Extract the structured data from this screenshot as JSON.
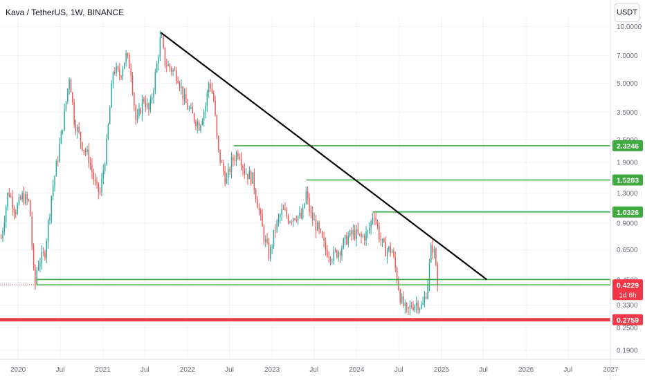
{
  "header": {
    "title": "Kava / TetherUS, 1W, BINANCE",
    "unit_button": "USDT"
  },
  "colors": {
    "up": "#26a69a",
    "down": "#ef5350",
    "level": "#3faa3f",
    "support_red": "#ef3b4c",
    "trend": "#000000",
    "price_badge": "#f23645"
  },
  "chart_data": {
    "type": "candlestick",
    "interval": "1W",
    "y_scale": "log",
    "ylim": [
      0.17,
      11.5
    ],
    "xlim": [
      "2019-10-15",
      "2026-12-31"
    ],
    "y_ticks": [
      "10.0000",
      "7.0000",
      "5.0000",
      "3.5000",
      "2.5000",
      "1.9000",
      "1.3000",
      "0.9000",
      "0.6500",
      "0.4500",
      "0.3300",
      "0.2500",
      "0.1900"
    ],
    "x_ticks": [
      {
        "label": "2020",
        "date": "2020-01-01"
      },
      {
        "label": "Jul",
        "date": "2020-07-01"
      },
      {
        "label": "2021",
        "date": "2021-01-01"
      },
      {
        "label": "Jul",
        "date": "2021-07-01"
      },
      {
        "label": "2022",
        "date": "2022-01-01"
      },
      {
        "label": "Jul",
        "date": "2022-07-01"
      },
      {
        "label": "2023",
        "date": "2023-01-01"
      },
      {
        "label": "Jul",
        "date": "2023-07-01"
      },
      {
        "label": "2024",
        "date": "2024-01-01"
      },
      {
        "label": "Jul",
        "date": "2024-07-01"
      },
      {
        "label": "2025",
        "date": "2025-01-01"
      },
      {
        "label": "Jul",
        "date": "2025-07-01"
      },
      {
        "label": "2026",
        "date": "2026-01-01"
      },
      {
        "label": "Jul",
        "date": "2026-07-01"
      },
      {
        "label": "2027",
        "date": "2027-01-01"
      }
    ],
    "price_path": [
      [
        "2019-10-20",
        0.75
      ],
      [
        "2019-11-20",
        1.35
      ],
      [
        "2019-12-20",
        1.05
      ],
      [
        "2020-01-20",
        1.25
      ],
      [
        "2020-02-20",
        1.15
      ],
      [
        "2020-03-12",
        0.4
      ],
      [
        "2020-03-25",
        0.55
      ],
      [
        "2020-04-25",
        0.62
      ],
      [
        "2020-05-25",
        1.3
      ],
      [
        "2020-06-20",
        2.0
      ],
      [
        "2020-07-20",
        3.5
      ],
      [
        "2020-08-10",
        5.6
      ],
      [
        "2020-08-30",
        3.2
      ],
      [
        "2020-10-01",
        2.4
      ],
      [
        "2020-11-01",
        2.0
      ],
      [
        "2020-12-01",
        1.4
      ],
      [
        "2020-12-20",
        1.3
      ],
      [
        "2021-01-15",
        2.2
      ],
      [
        "2021-02-15",
        6.0
      ],
      [
        "2021-03-15",
        5.5
      ],
      [
        "2021-04-10",
        7.0
      ],
      [
        "2021-05-01",
        6.0
      ],
      [
        "2021-05-25",
        3.0
      ],
      [
        "2021-06-25",
        4.2
      ],
      [
        "2021-07-20",
        3.5
      ],
      [
        "2021-08-20",
        6.0
      ],
      [
        "2021-09-08",
        9.0
      ],
      [
        "2021-09-25",
        6.5
      ],
      [
        "2021-10-20",
        6.0
      ],
      [
        "2021-11-20",
        5.5
      ],
      [
        "2021-12-20",
        4.0
      ],
      [
        "2022-01-20",
        3.4
      ],
      [
        "2022-02-20",
        3.0
      ],
      [
        "2022-03-20",
        3.8
      ],
      [
        "2022-04-05",
        5.2
      ],
      [
        "2022-04-25",
        4.0
      ],
      [
        "2022-05-12",
        2.2
      ],
      [
        "2022-05-30",
        1.8
      ],
      [
        "2022-06-18",
        1.5
      ],
      [
        "2022-07-10",
        1.9
      ],
      [
        "2022-08-10",
        2.2
      ],
      [
        "2022-09-05",
        1.7
      ],
      [
        "2022-10-10",
        1.55
      ],
      [
        "2022-11-09",
        1.0
      ],
      [
        "2022-11-25",
        0.78
      ],
      [
        "2022-12-20",
        0.6
      ],
      [
        "2023-01-15",
        0.85
      ],
      [
        "2023-02-15",
        1.05
      ],
      [
        "2023-03-15",
        0.95
      ],
      [
        "2023-04-15",
        1.0
      ],
      [
        "2023-05-10",
        0.95
      ],
      [
        "2023-05-28",
        1.3
      ],
      [
        "2023-06-15",
        1.0
      ],
      [
        "2023-07-15",
        0.85
      ],
      [
        "2023-08-20",
        0.65
      ],
      [
        "2023-09-20",
        0.6
      ],
      [
        "2023-10-20",
        0.65
      ],
      [
        "2023-11-20",
        0.75
      ],
      [
        "2023-12-20",
        0.8
      ],
      [
        "2024-01-20",
        0.75
      ],
      [
        "2024-02-20",
        0.8
      ],
      [
        "2024-03-15",
        1.05
      ],
      [
        "2024-04-10",
        0.75
      ],
      [
        "2024-05-01",
        0.65
      ],
      [
        "2024-06-01",
        0.65
      ],
      [
        "2024-06-25",
        0.45
      ],
      [
        "2024-07-10",
        0.35
      ],
      [
        "2024-08-05",
        0.3
      ],
      [
        "2024-08-25",
        0.33
      ],
      [
        "2024-09-20",
        0.34
      ],
      [
        "2024-10-10",
        0.32
      ],
      [
        "2024-10-30",
        0.4
      ],
      [
        "2024-11-20",
        0.7
      ],
      [
        "2024-12-05",
        0.6
      ],
      [
        "2024-12-16",
        0.4229
      ]
    ],
    "trendline": {
      "from": [
        "2021-09-08",
        9.3
      ],
      "to": [
        "2025-07-15",
        0.452
      ]
    },
    "levels": [
      {
        "from": "2022-07-20",
        "to": "2026-12-31",
        "price": 2.3246,
        "label": "2.3246"
      },
      {
        "from": "2023-05-28",
        "to": "2026-12-31",
        "price": 1.5283,
        "label": "1.5283"
      },
      {
        "from": "2024-03-10",
        "to": "2026-12-31",
        "price": 1.0326,
        "label": "1.0326"
      }
    ],
    "zone": {
      "from": "2020-03-22",
      "top": 0.452,
      "bottom": 0.4229
    },
    "support_line": {
      "price": 0.2759,
      "label": "0.2759"
    },
    "last_price": {
      "price": 0.4229,
      "label": "0.4229",
      "countdown": "1d 6h"
    }
  }
}
